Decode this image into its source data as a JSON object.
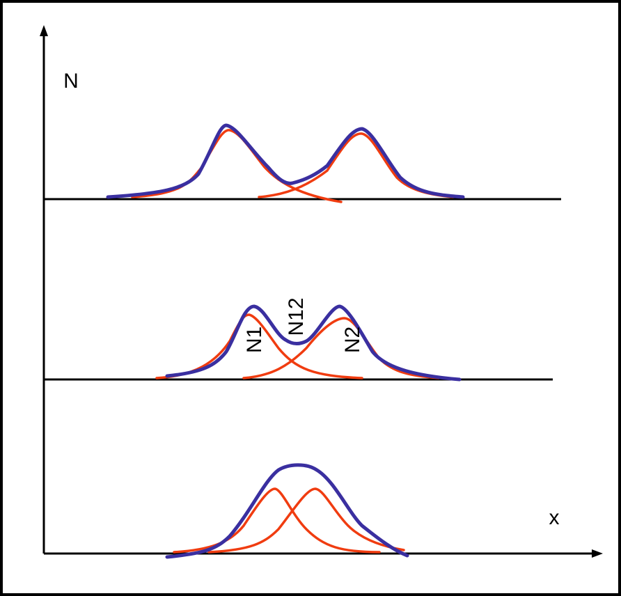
{
  "axes": {
    "y_label": "N",
    "x_label": "x"
  },
  "labels": {
    "n1": "N1",
    "n12": "N12",
    "n2": "N2"
  }
}
